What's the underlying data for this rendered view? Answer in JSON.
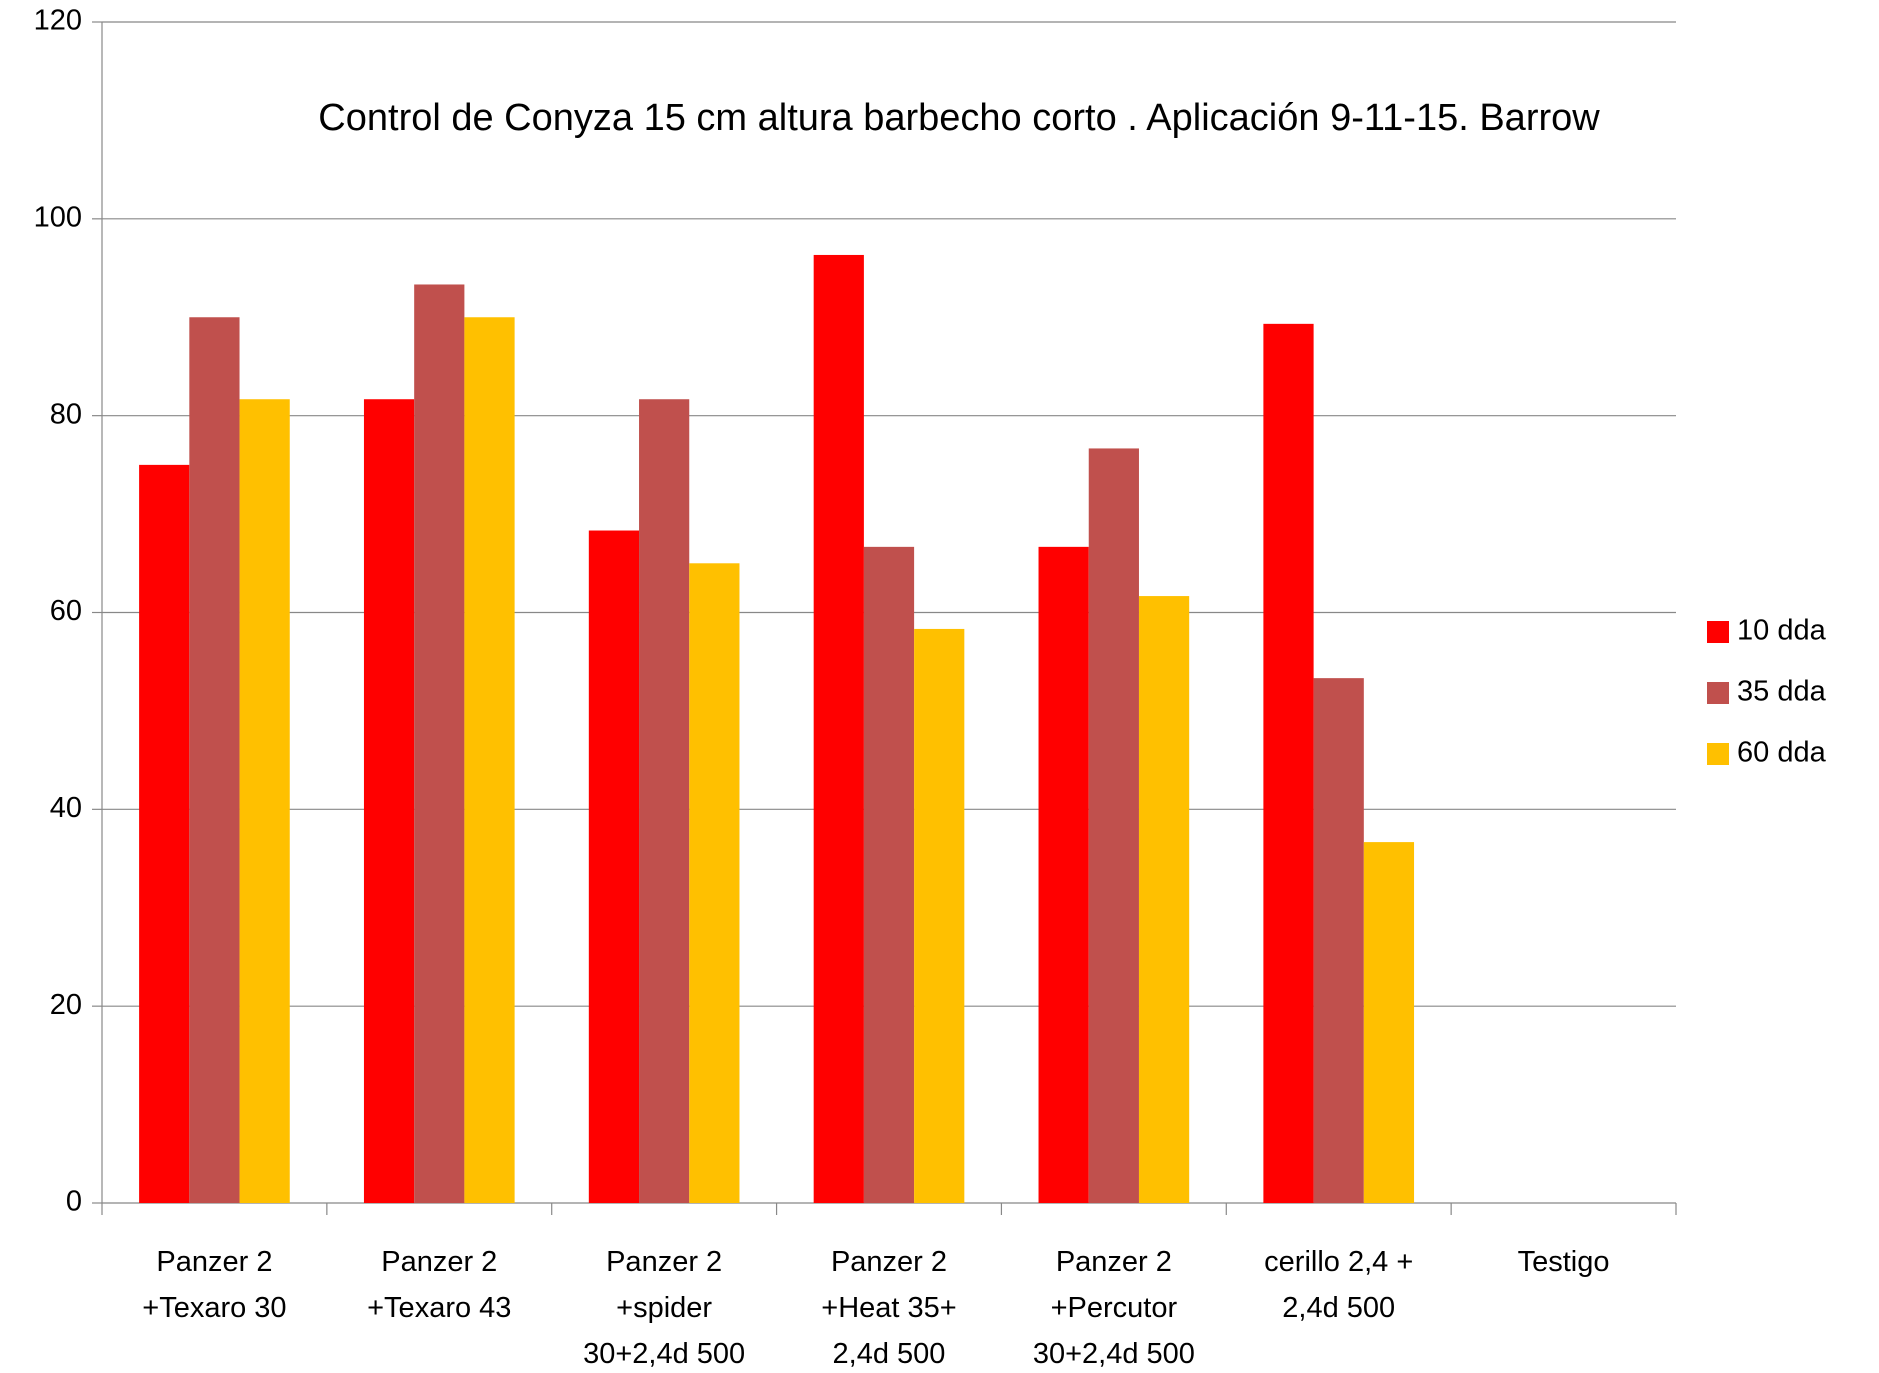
{
  "chart_data": {
    "type": "bar",
    "title": "Control de Conyza  15 cm altura barbecho corto . Aplicación 9-11-15. Barrow",
    "categories": [
      "Panzer 2\n+Texaro 30",
      "Panzer 2\n+Texaro 43",
      "Panzer 2\n+spider\n30+2,4d 500",
      "Panzer 2\n+Heat 35+\n2,4d 500",
      "Panzer 2\n+Percutor\n30+2,4d 500",
      "cerillo 2,4 +\n2,4d 500",
      "Testigo"
    ],
    "series": [
      {
        "name": "10 dda",
        "color": "#ff0000",
        "values": [
          75,
          81.67,
          68.33,
          96.33,
          66.67,
          89.33,
          0
        ]
      },
      {
        "name": "35 dda",
        "color": "#c0504d",
        "values": [
          90,
          93.33,
          81.67,
          66.67,
          76.67,
          53.33,
          0
        ]
      },
      {
        "name": "60 dda",
        "color": "#ffc000",
        "values": [
          81.67,
          90,
          65,
          58.33,
          61.67,
          36.67,
          0
        ]
      }
    ],
    "ylim": [
      0,
      120
    ],
    "yticks": [
      0,
      20,
      40,
      60,
      80,
      100,
      120
    ],
    "grid": true,
    "legend": "right"
  }
}
